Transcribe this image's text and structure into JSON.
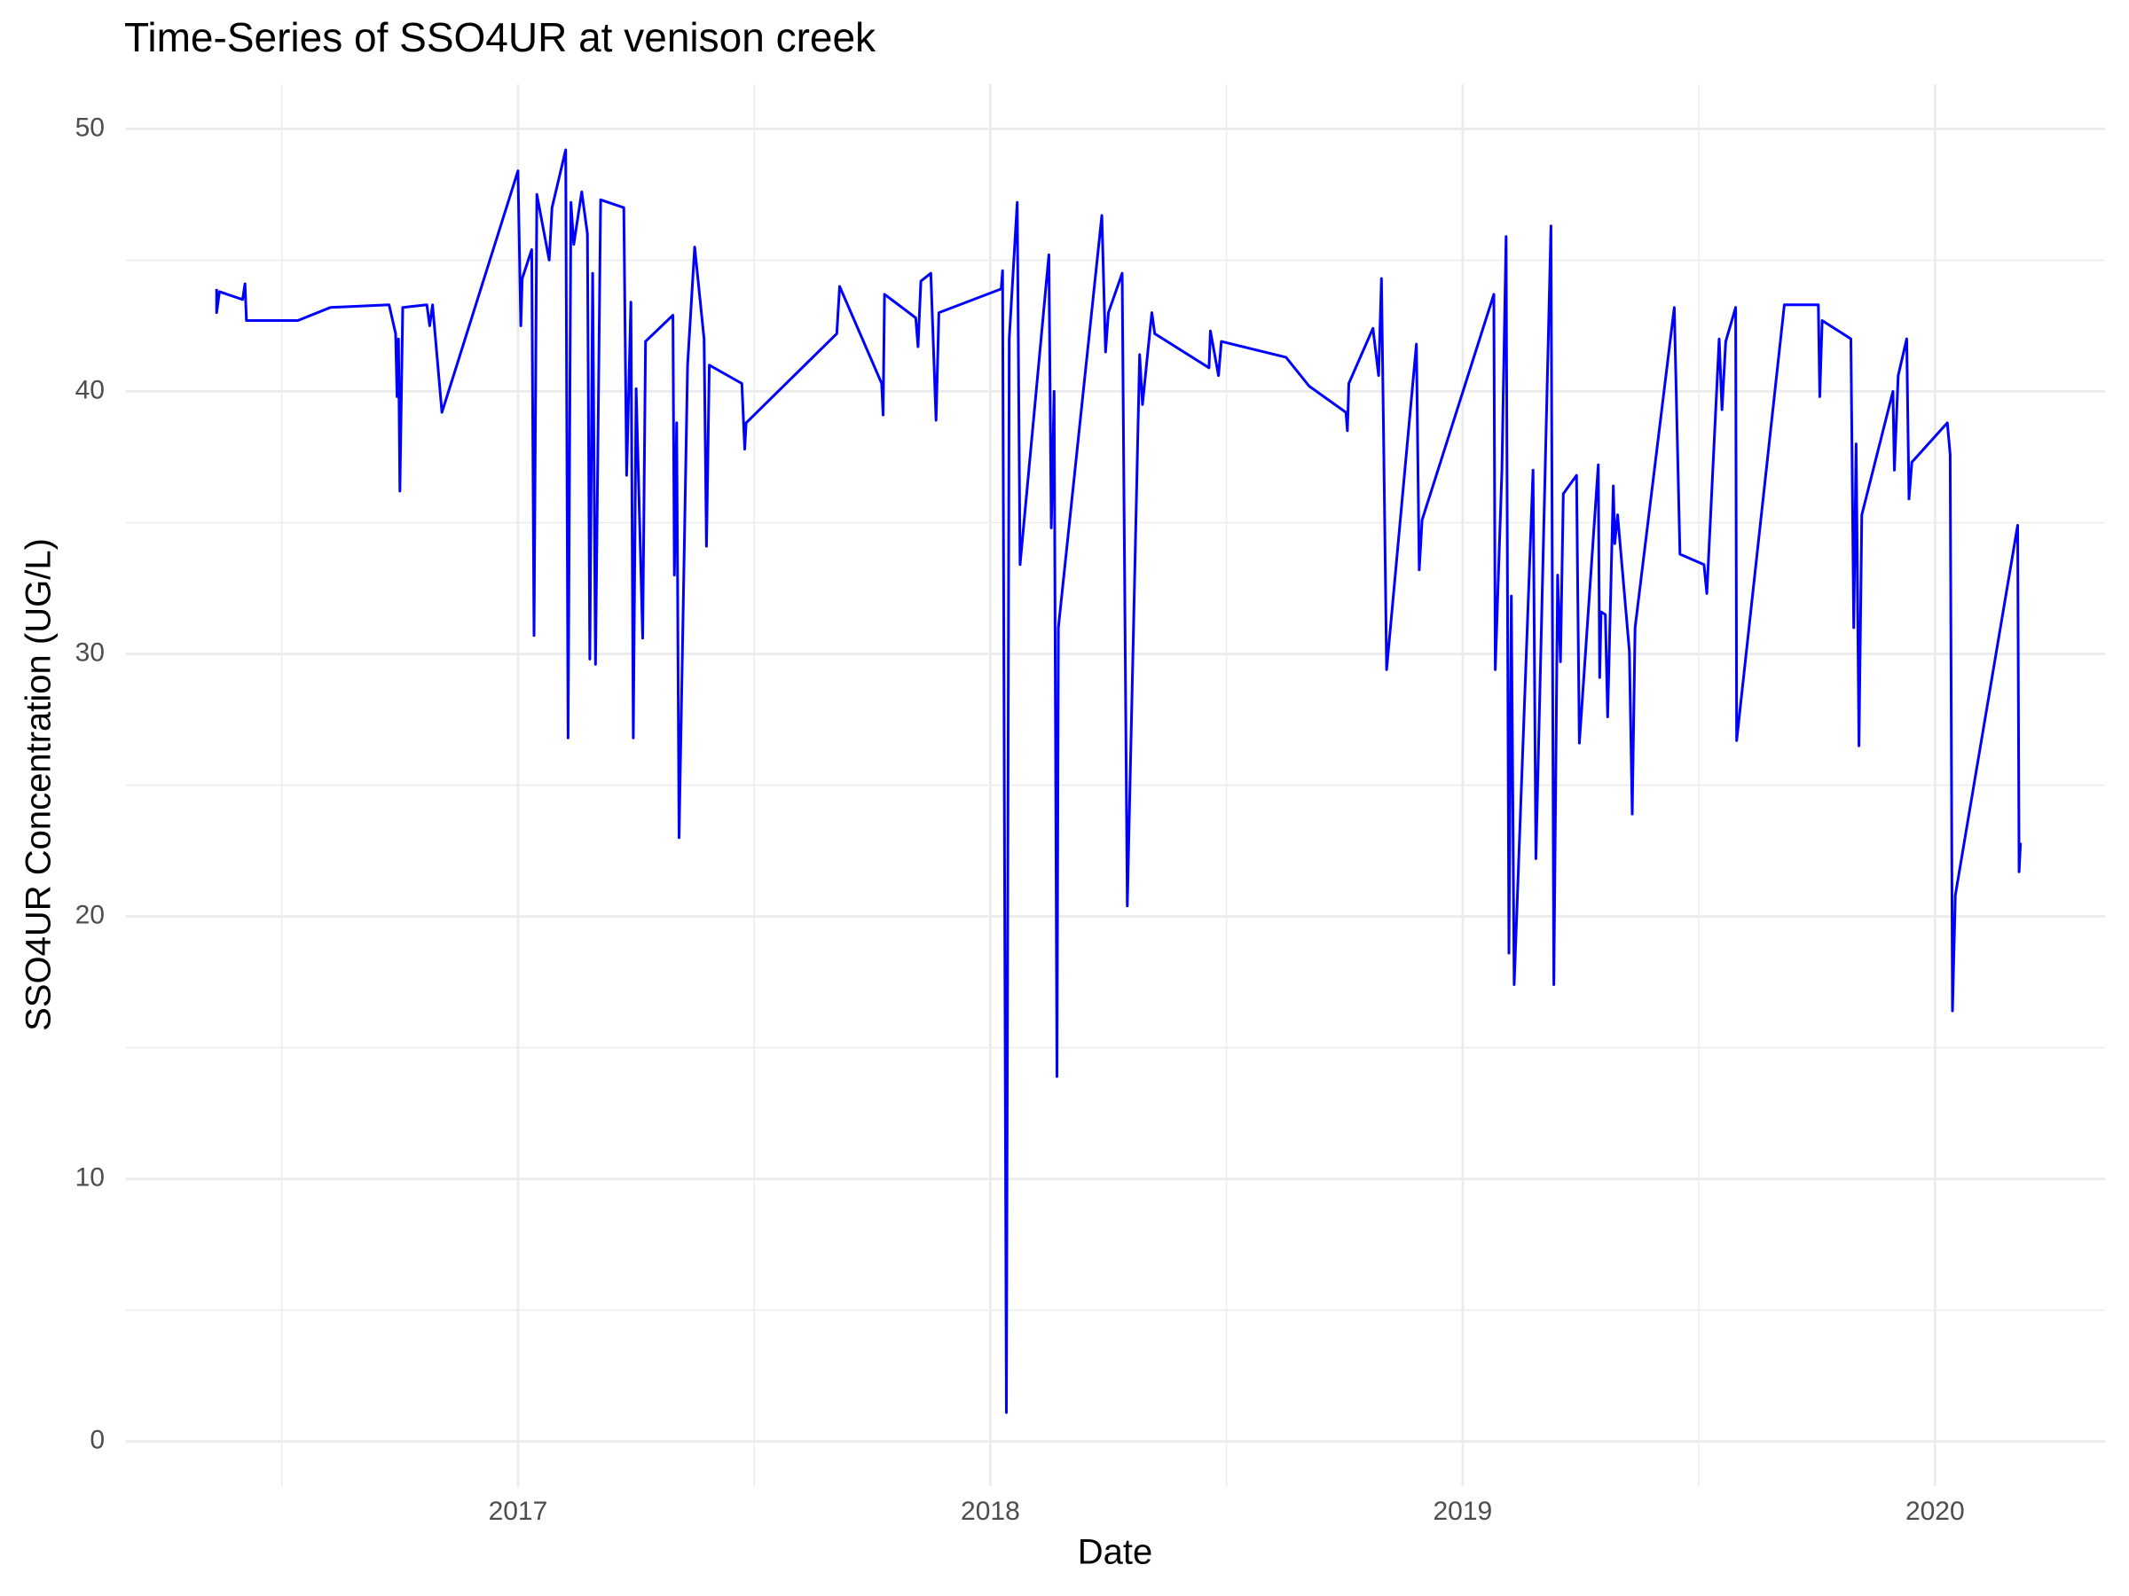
{
  "chart_data": {
    "type": "line",
    "title": "Time-Series of SSO4UR at venison creek",
    "x_label": "Date",
    "y_label": "SSO4UR Concentration (UG/L)",
    "color": "#0000ff",
    "grid": true,
    "xlim": [
      2016.17,
      2020.36
    ],
    "xticks": [
      2017,
      2018,
      2019,
      2020
    ],
    "ylim": [
      -1.7,
      51.7
    ],
    "yticks": [
      0,
      10,
      20,
      30,
      40,
      50
    ],
    "x": [
      2016.362,
      2016.362,
      2016.368,
      2016.417,
      2016.422,
      2016.425,
      2016.534,
      2016.603,
      2016.727,
      2016.741,
      2016.744,
      2016.747,
      2016.75,
      2016.756,
      2016.807,
      2016.813,
      2016.819,
      2016.839,
      2017.0,
      2017.006,
      2017.009,
      2017.029,
      2017.034,
      2017.04,
      2017.066,
      2017.072,
      2017.101,
      2017.106,
      2017.112,
      2017.118,
      2017.135,
      2017.147,
      2017.152,
      2017.158,
      2017.164,
      2017.175,
      2017.224,
      2017.23,
      2017.239,
      2017.244,
      2017.25,
      2017.264,
      2017.27,
      2017.328,
      2017.331,
      2017.336,
      2017.341,
      2017.359,
      2017.374,
      2017.394,
      2017.399,
      2017.405,
      2017.474,
      2017.48,
      2017.483,
      2017.675,
      2017.681,
      2017.77,
      2017.773,
      2017.776,
      2017.842,
      2017.847,
      2017.853,
      2017.874,
      2017.885,
      2017.891,
      2018.023,
      2018.026,
      2018.034,
      2018.04,
      2018.057,
      2018.063,
      2018.124,
      2018.129,
      2018.135,
      2018.141,
      2018.144,
      2018.236,
      2018.244,
      2018.25,
      2018.279,
      2018.29,
      2018.316,
      2018.322,
      2018.339,
      2018.342,
      2018.348,
      2018.463,
      2018.466,
      2018.483,
      2018.489,
      2018.626,
      2018.675,
      2018.753,
      2018.756,
      2018.759,
      2018.81,
      2018.822,
      2018.828,
      2018.833,
      2018.839,
      2018.902,
      2018.908,
      2018.914,
      2019.066,
      2019.069,
      2019.083,
      2019.092,
      2019.098,
      2019.103,
      2019.109,
      2019.149,
      2019.155,
      2019.187,
      2019.193,
      2019.201,
      2019.207,
      2019.213,
      2019.241,
      2019.247,
      2019.287,
      2019.29,
      2019.293,
      2019.302,
      2019.307,
      2019.319,
      2019.322,
      2019.328,
      2019.353,
      2019.359,
      2019.365,
      2019.448,
      2019.46,
      2019.511,
      2019.517,
      2019.543,
      2019.549,
      2019.557,
      2019.578,
      2019.58,
      2019.681,
      2019.753,
      2019.756,
      2019.761,
      2019.822,
      2019.828,
      2019.833,
      2019.839,
      2019.845,
      2019.911,
      2019.914,
      2019.922,
      2019.94,
      2019.945,
      2019.951,
      2020.026,
      2020.032,
      2020.037,
      2020.043,
      2020.175,
      2020.178,
      2020.181
    ],
    "values": [
      43.9,
      43.0,
      43.8,
      43.5,
      44.1,
      42.7,
      42.7,
      43.2,
      43.3,
      42.2,
      39.8,
      42.0,
      36.2,
      43.2,
      43.3,
      42.5,
      43.3,
      39.2,
      48.4,
      42.5,
      44.3,
      45.4,
      30.7,
      47.5,
      45.0,
      47.0,
      49.2,
      26.8,
      47.2,
      45.6,
      47.6,
      46.0,
      29.8,
      44.5,
      29.6,
      47.3,
      47.0,
      36.8,
      43.4,
      26.8,
      40.1,
      30.6,
      41.9,
      42.9,
      33.0,
      38.8,
      23.0,
      41.0,
      45.5,
      42.0,
      34.1,
      41.0,
      40.3,
      37.8,
      38.8,
      42.2,
      44.0,
      40.3,
      39.1,
      43.7,
      42.8,
      41.7,
      44.2,
      44.5,
      38.9,
      43.0,
      43.9,
      44.6,
      1.1,
      42.0,
      47.2,
      33.4,
      45.2,
      34.8,
      40.0,
      13.9,
      31.0,
      46.7,
      41.5,
      43.0,
      44.5,
      20.4,
      41.4,
      39.5,
      42.5,
      43.0,
      42.2,
      40.9,
      42.3,
      40.6,
      41.9,
      41.3,
      40.2,
      39.2,
      38.5,
      40.3,
      42.4,
      40.6,
      44.3,
      37.8,
      29.4,
      41.8,
      33.2,
      35.1,
      43.7,
      29.4,
      37.0,
      45.9,
      18.6,
      32.2,
      17.4,
      37.0,
      22.2,
      46.3,
      17.4,
      33.0,
      29.7,
      36.1,
      36.8,
      26.6,
      37.2,
      29.1,
      31.6,
      31.5,
      27.6,
      36.4,
      34.2,
      35.3,
      30.1,
      23.9,
      31.0,
      43.2,
      33.8,
      33.4,
      32.3,
      42.0,
      39.3,
      41.9,
      43.2,
      26.7,
      43.3,
      43.3,
      39.8,
      42.7,
      42.0,
      31.0,
      38.0,
      26.5,
      35.3,
      40.0,
      37.0,
      40.6,
      42.0,
      35.9,
      37.3,
      38.8,
      37.6,
      16.4,
      20.8,
      34.9,
      21.7,
      22.8
    ]
  }
}
